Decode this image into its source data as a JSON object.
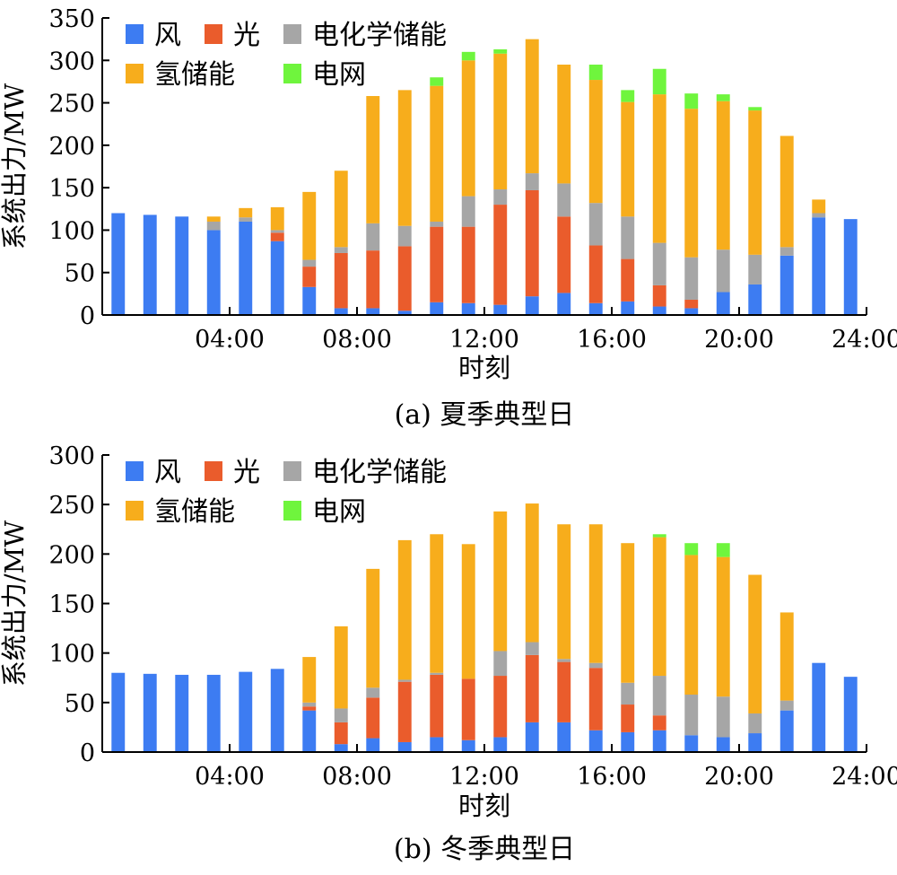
{
  "chart_data": [
    {
      "type": "bar",
      "stacked": true,
      "caption": "(a) 夏季典型日",
      "xlabel": "时刻",
      "ylabel": "系统出力/MW",
      "ylim": [
        0,
        350
      ],
      "yticks": [
        0,
        50,
        100,
        150,
        200,
        250,
        300,
        350
      ],
      "xlim": [
        0,
        24
      ],
      "xticks": [
        "04:00",
        "08:00",
        "12:00",
        "16:00",
        "20:00",
        "24:00"
      ],
      "xtick_hours": [
        4,
        8,
        12,
        16,
        20,
        24
      ],
      "hours": [
        1,
        2,
        3,
        4,
        5,
        6,
        7,
        8,
        9,
        10,
        11,
        12,
        13,
        14,
        15,
        16,
        17,
        18,
        19,
        20,
        21,
        22,
        23,
        24
      ],
      "legend_position": "top-left",
      "series": [
        {
          "name": "风",
          "color": "#3d7cf2",
          "values": [
            120,
            118,
            116,
            100,
            110,
            87,
            33,
            8,
            8,
            5,
            15,
            14,
            12,
            22,
            26,
            14,
            16,
            10,
            8,
            27,
            36,
            70,
            115,
            113
          ]
        },
        {
          "name": "光",
          "color": "#ea5c2c",
          "values": [
            0,
            0,
            0,
            0,
            0,
            10,
            24,
            65,
            68,
            76,
            89,
            90,
            118,
            125,
            90,
            68,
            50,
            25,
            10,
            0,
            0,
            0,
            0,
            0
          ]
        },
        {
          "name": "电化学储能",
          "color": "#a6a6a6",
          "values": [
            0,
            0,
            0,
            10,
            5,
            3,
            8,
            7,
            32,
            24,
            6,
            36,
            18,
            20,
            39,
            50,
            50,
            50,
            50,
            50,
            35,
            10,
            5,
            0
          ]
        },
        {
          "name": "氢储能",
          "color": "#f7ad1c",
          "values": [
            0,
            0,
            0,
            6,
            11,
            27,
            80,
            90,
            150,
            160,
            160,
            160,
            160,
            158,
            140,
            145,
            135,
            175,
            175,
            175,
            170,
            131,
            16,
            0
          ]
        },
        {
          "name": "电网",
          "color": "#6ff53d",
          "values": [
            0,
            0,
            0,
            0,
            0,
            0,
            0,
            0,
            0,
            0,
            10,
            10,
            5,
            0,
            0,
            18,
            14,
            30,
            18,
            8,
            4,
            0,
            0,
            0
          ]
        }
      ]
    },
    {
      "type": "bar",
      "stacked": true,
      "caption": "(b) 冬季典型日",
      "xlabel": "时刻",
      "ylabel": "系统出力/MW",
      "ylim": [
        0,
        300
      ],
      "yticks": [
        0,
        50,
        100,
        150,
        200,
        250,
        300
      ],
      "xlim": [
        0,
        24
      ],
      "xticks": [
        "04:00",
        "08:00",
        "12:00",
        "16:00",
        "20:00",
        "24:00"
      ],
      "xtick_hours": [
        4,
        8,
        12,
        16,
        20,
        24
      ],
      "hours": [
        1,
        2,
        3,
        4,
        5,
        6,
        7,
        8,
        9,
        10,
        11,
        12,
        13,
        14,
        15,
        16,
        17,
        18,
        19,
        20,
        21,
        22,
        23,
        24
      ],
      "legend_position": "top-left",
      "series": [
        {
          "name": "风",
          "color": "#3d7cf2",
          "values": [
            80,
            79,
            78,
            78,
            81,
            84,
            42,
            8,
            14,
            10,
            15,
            12,
            15,
            30,
            30,
            22,
            20,
            22,
            17,
            15,
            19,
            42,
            90,
            76
          ]
        },
        {
          "name": "光",
          "color": "#ea5c2c",
          "values": [
            0,
            0,
            0,
            0,
            0,
            0,
            4,
            22,
            41,
            61,
            63,
            62,
            62,
            68,
            61,
            63,
            28,
            15,
            0,
            0,
            0,
            0,
            0,
            0
          ]
        },
        {
          "name": "电化学储能",
          "color": "#a6a6a6",
          "values": [
            0,
            0,
            0,
            0,
            0,
            0,
            4,
            14,
            10,
            2,
            2,
            0,
            25,
            13,
            3,
            5,
            22,
            40,
            41,
            41,
            20,
            10,
            0,
            0
          ]
        },
        {
          "name": "氢储能",
          "color": "#f7ad1c",
          "values": [
            0,
            0,
            0,
            0,
            0,
            0,
            46,
            83,
            120,
            141,
            140,
            136,
            141,
            140,
            136,
            140,
            141,
            140,
            141,
            141,
            140,
            89,
            0,
            0
          ]
        },
        {
          "name": "电网",
          "color": "#6ff53d",
          "values": [
            0,
            0,
            0,
            0,
            0,
            0,
            0,
            0,
            0,
            0,
            0,
            0,
            0,
            0,
            0,
            0,
            0,
            3,
            12,
            14,
            0,
            0,
            0,
            0
          ]
        }
      ]
    }
  ]
}
